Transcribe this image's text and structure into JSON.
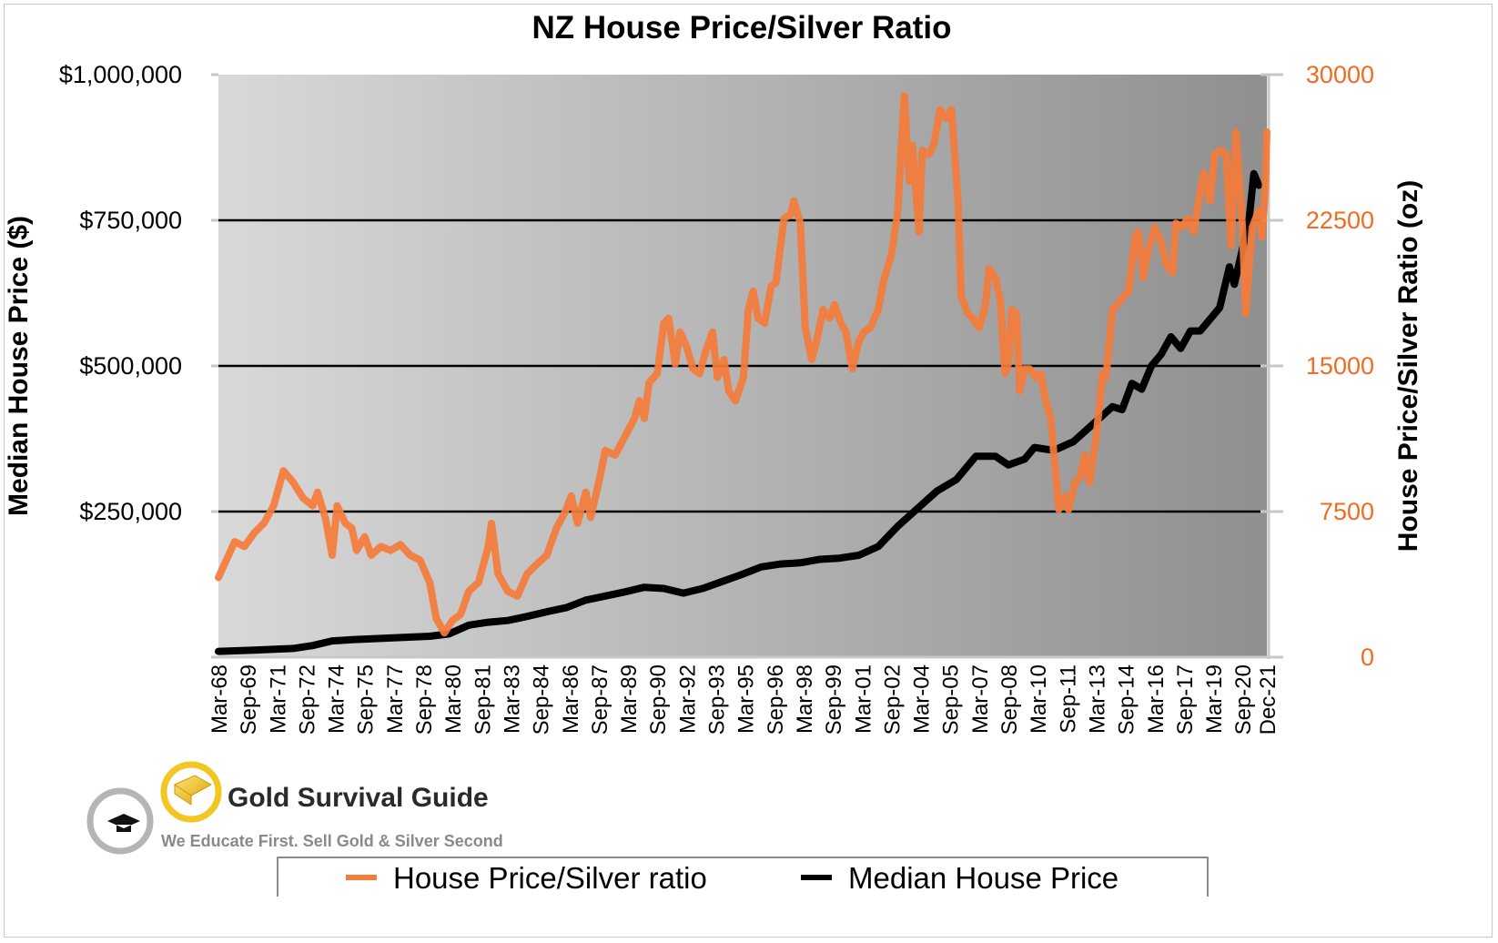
{
  "chart_data": {
    "type": "line",
    "title": "NZ House Price/Silver Ratio",
    "ylabel": "Median House Price ($)",
    "y2label": "House Price/Silver Ratio (oz)",
    "ylim": [
      0,
      1000000
    ],
    "y2lim": [
      0,
      30000
    ],
    "yticks": [
      "$1,000,000",
      "$750,000",
      "$500,000",
      "$250,000"
    ],
    "yticks_values": [
      1000000,
      750000,
      500000,
      250000
    ],
    "y2ticks": [
      "30000",
      "22500",
      "15000",
      "7500",
      "0"
    ],
    "y2ticks_values": [
      30000,
      22500,
      15000,
      7500,
      0
    ],
    "xlim": [
      "1968-03",
      "2021-12"
    ],
    "xticks": [
      "Mar-68",
      "Sep-69",
      "Mar-71",
      "Sep-72",
      "Mar-74",
      "Sep-75",
      "Mar-77",
      "Sep-78",
      "Mar-80",
      "Sep-81",
      "Mar-83",
      "Sep-84",
      "Mar-86",
      "Sep-87",
      "Mar-89",
      "Sep-90",
      "Mar-92",
      "Sep-93",
      "Mar-95",
      "Sep-96",
      "Mar-98",
      "Sep-99",
      "Mar-01",
      "Sep-02",
      "Mar-04",
      "Sep-05",
      "Mar-07",
      "Sep-08",
      "Mar-10",
      "Sep-11",
      "Mar-13",
      "Sep-14",
      "Mar-16",
      "Sep-17",
      "Mar-19",
      "Sep-20",
      "Dec-21"
    ],
    "grid": true,
    "legend_placement": "bottom",
    "colors": {
      "ratio": "#f47b3a",
      "price": "#000000",
      "right_axis": "#f26b21"
    },
    "series": [
      {
        "name": "House Price/Silver ratio",
        "axis": "right",
        "points": [
          [
            "1968-03",
            4100
          ],
          [
            "1969-01",
            5950
          ],
          [
            "1969-07",
            5700
          ],
          [
            "1970-01",
            6400
          ],
          [
            "1970-07",
            6900
          ],
          [
            "1971-01",
            7800
          ],
          [
            "1971-07",
            9600
          ],
          [
            "1972-01",
            9000
          ],
          [
            "1972-07",
            8200
          ],
          [
            "1973-01",
            7800
          ],
          [
            "1973-04",
            8500
          ],
          [
            "1973-09",
            7100
          ],
          [
            "1974-01",
            5250
          ],
          [
            "1974-04",
            7800
          ],
          [
            "1974-09",
            6900
          ],
          [
            "1975-01",
            6650
          ],
          [
            "1975-04",
            5500
          ],
          [
            "1975-09",
            6200
          ],
          [
            "1976-01",
            5250
          ],
          [
            "1976-07",
            5700
          ],
          [
            "1977-01",
            5500
          ],
          [
            "1977-07",
            5800
          ],
          [
            "1978-01",
            5250
          ],
          [
            "1978-07",
            5000
          ],
          [
            "1979-01",
            3850
          ],
          [
            "1979-05",
            2000
          ],
          [
            "1979-10",
            1250
          ],
          [
            "1980-03",
            1900
          ],
          [
            "1980-08",
            2200
          ],
          [
            "1981-01",
            3400
          ],
          [
            "1981-07",
            3850
          ],
          [
            "1982-01",
            5700
          ],
          [
            "1982-03",
            6900
          ],
          [
            "1982-07",
            4300
          ],
          [
            "1983-01",
            3400
          ],
          [
            "1983-07",
            3150
          ],
          [
            "1984-01",
            4300
          ],
          [
            "1984-07",
            4800
          ],
          [
            "1985-01",
            5250
          ],
          [
            "1985-07",
            6650
          ],
          [
            "1986-01",
            7600
          ],
          [
            "1986-04",
            8300
          ],
          [
            "1986-08",
            6900
          ],
          [
            "1987-01",
            8500
          ],
          [
            "1987-04",
            7200
          ],
          [
            "1987-09",
            9000
          ],
          [
            "1988-01",
            10650
          ],
          [
            "1988-07",
            10400
          ],
          [
            "1989-01",
            11350
          ],
          [
            "1989-07",
            12300
          ],
          [
            "1989-10",
            13200
          ],
          [
            "1990-01",
            12300
          ],
          [
            "1990-04",
            14150
          ],
          [
            "1990-09",
            14600
          ],
          [
            "1991-01",
            17200
          ],
          [
            "1991-04",
            17450
          ],
          [
            "1991-08",
            15100
          ],
          [
            "1991-11",
            16750
          ],
          [
            "1992-03",
            16000
          ],
          [
            "1992-07",
            14850
          ],
          [
            "1992-11",
            14600
          ],
          [
            "1993-03",
            15800
          ],
          [
            "1993-07",
            16750
          ],
          [
            "1993-10",
            14400
          ],
          [
            "1994-02",
            15330
          ],
          [
            "1994-05",
            13700
          ],
          [
            "1994-09",
            13200
          ],
          [
            "1995-02",
            14400
          ],
          [
            "1995-05",
            17900
          ],
          [
            "1995-08",
            18850
          ],
          [
            "1995-11",
            17450
          ],
          [
            "1996-03",
            17200
          ],
          [
            "1996-07",
            19100
          ],
          [
            "1996-10",
            19300
          ],
          [
            "1997-03",
            22600
          ],
          [
            "1997-07",
            22800
          ],
          [
            "1997-09",
            23500
          ],
          [
            "1998-01",
            22350
          ],
          [
            "1998-04",
            16950
          ],
          [
            "1998-08",
            15330
          ],
          [
            "1998-11",
            16270
          ],
          [
            "1999-03",
            17900
          ],
          [
            "1999-07",
            17450
          ],
          [
            "1999-10",
            18150
          ],
          [
            "2000-02",
            17200
          ],
          [
            "2000-05",
            16750
          ],
          [
            "2000-09",
            14850
          ],
          [
            "2001-01",
            16270
          ],
          [
            "2001-04",
            16750
          ],
          [
            "2001-08",
            16970
          ],
          [
            "2002-01",
            17900
          ],
          [
            "2002-04",
            19300
          ],
          [
            "2002-09",
            20700
          ],
          [
            "2003-01",
            23000
          ],
          [
            "2003-03",
            26100
          ],
          [
            "2003-05",
            28900
          ],
          [
            "2003-08",
            24500
          ],
          [
            "2003-10",
            26350
          ],
          [
            "2004-02",
            21900
          ],
          [
            "2004-04",
            26100
          ],
          [
            "2004-08",
            25900
          ],
          [
            "2004-11",
            26350
          ],
          [
            "2005-03",
            28200
          ],
          [
            "2005-07",
            27750
          ],
          [
            "2005-10",
            28200
          ],
          [
            "2006-02",
            23500
          ],
          [
            "2006-04",
            18600
          ],
          [
            "2006-08",
            17700
          ],
          [
            "2006-11",
            17450
          ],
          [
            "2007-03",
            16970
          ],
          [
            "2007-07",
            18150
          ],
          [
            "2007-09",
            20000
          ],
          [
            "2008-01",
            19550
          ],
          [
            "2008-04",
            18400
          ],
          [
            "2008-07",
            14600
          ],
          [
            "2008-09",
            15100
          ],
          [
            "2008-11",
            17900
          ],
          [
            "2009-02",
            17700
          ],
          [
            "2009-04",
            13700
          ],
          [
            "2009-07",
            14850
          ],
          [
            "2009-10",
            14850
          ],
          [
            "2010-02",
            14400
          ],
          [
            "2010-05",
            14600
          ],
          [
            "2010-08",
            13200
          ],
          [
            "2010-11",
            12300
          ],
          [
            "2011-02",
            9500
          ],
          [
            "2011-04",
            7600
          ],
          [
            "2011-08",
            8300
          ],
          [
            "2011-10",
            7600
          ],
          [
            "2012-02",
            9000
          ],
          [
            "2012-05",
            9250
          ],
          [
            "2012-08",
            10400
          ],
          [
            "2012-11",
            9000
          ],
          [
            "2013-03",
            11350
          ],
          [
            "2013-07",
            14600
          ],
          [
            "2013-09",
            14400
          ],
          [
            "2014-01",
            17900
          ],
          [
            "2014-04",
            18150
          ],
          [
            "2014-08",
            18600
          ],
          [
            "2014-11",
            18850
          ],
          [
            "2015-03",
            21650
          ],
          [
            "2015-05",
            21900
          ],
          [
            "2015-08",
            19550
          ],
          [
            "2015-11",
            20950
          ],
          [
            "2016-03",
            22130
          ],
          [
            "2016-07",
            21400
          ],
          [
            "2016-10",
            20250
          ],
          [
            "2017-02",
            19800
          ],
          [
            "2017-04",
            22350
          ],
          [
            "2017-08",
            22130
          ],
          [
            "2017-11",
            22600
          ],
          [
            "2018-03",
            21900
          ],
          [
            "2018-07",
            24000
          ],
          [
            "2018-09",
            24950
          ],
          [
            "2019-01",
            23500
          ],
          [
            "2019-04",
            25900
          ],
          [
            "2019-08",
            26100
          ],
          [
            "2019-11",
            25900
          ],
          [
            "2020-02",
            21200
          ],
          [
            "2020-05",
            27050
          ],
          [
            "2020-09",
            22130
          ],
          [
            "2020-11",
            17700
          ],
          [
            "2021-03",
            22130
          ],
          [
            "2021-07",
            23000
          ],
          [
            "2021-09",
            21650
          ],
          [
            "2021-11",
            24000
          ],
          [
            "2021-12",
            27050
          ]
        ]
      },
      {
        "name": "Median House Price",
        "axis": "left",
        "points": [
          [
            "1968-03",
            10000
          ],
          [
            "1970-01",
            12000
          ],
          [
            "1972-01",
            15000
          ],
          [
            "1973-01",
            20000
          ],
          [
            "1974-01",
            28000
          ],
          [
            "1975-01",
            30000
          ],
          [
            "1977-01",
            33000
          ],
          [
            "1979-01",
            36000
          ],
          [
            "1980-01",
            40000
          ],
          [
            "1981-01",
            55000
          ],
          [
            "1982-01",
            60000
          ],
          [
            "1983-01",
            63000
          ],
          [
            "1984-01",
            70000
          ],
          [
            "1985-01",
            78000
          ],
          [
            "1986-01",
            85000
          ],
          [
            "1987-01",
            98000
          ],
          [
            "1988-01",
            105000
          ],
          [
            "1989-01",
            112000
          ],
          [
            "1990-01",
            120000
          ],
          [
            "1991-01",
            118000
          ],
          [
            "1992-01",
            110000
          ],
          [
            "1993-01",
            118000
          ],
          [
            "1994-01",
            130000
          ],
          [
            "1995-01",
            142000
          ],
          [
            "1996-01",
            155000
          ],
          [
            "1997-01",
            160000
          ],
          [
            "1998-01",
            162000
          ],
          [
            "1999-01",
            168000
          ],
          [
            "2000-01",
            170000
          ],
          [
            "2001-01",
            175000
          ],
          [
            "2002-01",
            190000
          ],
          [
            "2003-01",
            225000
          ],
          [
            "2004-01",
            255000
          ],
          [
            "2005-01",
            285000
          ],
          [
            "2006-01",
            305000
          ],
          [
            "2007-01",
            345000
          ],
          [
            "2008-01",
            345000
          ],
          [
            "2008-09",
            330000
          ],
          [
            "2009-07",
            340000
          ],
          [
            "2010-01",
            360000
          ],
          [
            "2011-01",
            355000
          ],
          [
            "2012-01",
            370000
          ],
          [
            "2013-01",
            400000
          ],
          [
            "2014-01",
            430000
          ],
          [
            "2014-07",
            425000
          ],
          [
            "2015-01",
            470000
          ],
          [
            "2015-07",
            460000
          ],
          [
            "2016-01",
            500000
          ],
          [
            "2016-07",
            520000
          ],
          [
            "2017-01",
            550000
          ],
          [
            "2017-07",
            530000
          ],
          [
            "2018-01",
            560000
          ],
          [
            "2018-07",
            560000
          ],
          [
            "2019-01",
            580000
          ],
          [
            "2019-07",
            600000
          ],
          [
            "2020-01",
            670000
          ],
          [
            "2020-04",
            640000
          ],
          [
            "2021-01",
            750000
          ],
          [
            "2021-04",
            830000
          ],
          [
            "2021-07",
            810000
          ]
        ]
      }
    ]
  },
  "legend": {
    "items": [
      "House Price/Silver ratio",
      "Median House Price"
    ]
  },
  "logo": {
    "name": "Gold Survival Guide",
    "tagline": "We Educate First. Sell Gold & Silver Second"
  }
}
